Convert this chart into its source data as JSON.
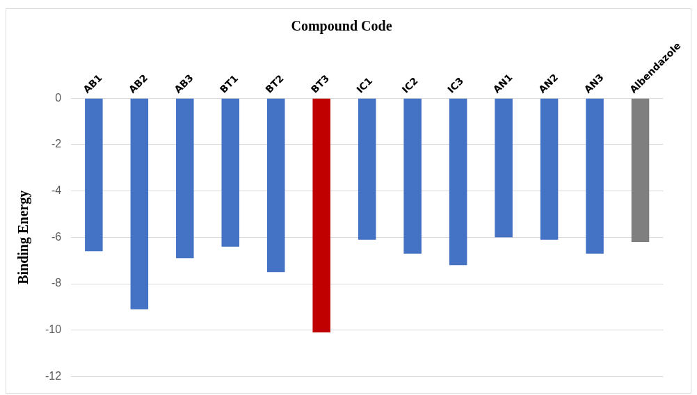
{
  "chart_data": {
    "type": "bar",
    "title": "Compound Code",
    "ylabel": "Binding Energy",
    "categories": [
      "AB1",
      "AB2",
      "AB3",
      "BT1",
      "BT2",
      "BT3",
      "IC1",
      "IC2",
      "IC3",
      "AN1",
      "AN2",
      "AN3",
      "Albendazole"
    ],
    "values": [
      -6.6,
      -9.1,
      -6.9,
      -6.4,
      -7.5,
      -10.1,
      -6.1,
      -6.7,
      -7.2,
      -6.0,
      -6.1,
      -6.7,
      -6.2
    ],
    "colors": [
      "#4472c4",
      "#4472c4",
      "#4472c4",
      "#4472c4",
      "#4472c4",
      "#c00000",
      "#4472c4",
      "#4472c4",
      "#4472c4",
      "#4472c4",
      "#4472c4",
      "#4472c4",
      "#7f7f7f"
    ],
    "ylim": [
      -12,
      0
    ],
    "yticks": [
      -12,
      -10,
      -8,
      -6,
      -4,
      -2,
      0
    ],
    "grid": "y"
  }
}
